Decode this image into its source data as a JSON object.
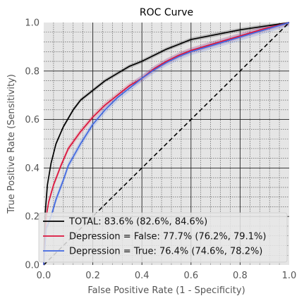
{
  "chart_data": {
    "type": "line",
    "title": "ROC Curve",
    "xlabel": "False Positive Rate (1 - Specificity)",
    "ylabel": "True Positive Rate (Sensitivity)",
    "xlim": [
      0,
      1
    ],
    "ylim": [
      0,
      1
    ],
    "xticks": [
      "0.0",
      "0.2",
      "0.4",
      "0.6",
      "0.8",
      "1.0"
    ],
    "yticks": [
      "0.0",
      "0.2",
      "0.4",
      "0.6",
      "0.8",
      "1.0"
    ],
    "grid": true,
    "legend_position": "lower-right",
    "colors": {
      "plot_background": "#e5e5e5",
      "reference_line": "#000000"
    },
    "series": [
      {
        "name": "TOTAL: 83.6% (82.6%, 84.6%)",
        "color": "#000000",
        "band": 0.008,
        "points": [
          [
            0,
            0
          ],
          [
            0.005,
            0.2
          ],
          [
            0.015,
            0.33
          ],
          [
            0.03,
            0.42
          ],
          [
            0.05,
            0.5
          ],
          [
            0.08,
            0.57
          ],
          [
            0.12,
            0.64
          ],
          [
            0.15,
            0.68
          ],
          [
            0.2,
            0.72
          ],
          [
            0.25,
            0.76
          ],
          [
            0.3,
            0.79
          ],
          [
            0.35,
            0.82
          ],
          [
            0.4,
            0.84
          ],
          [
            0.45,
            0.865
          ],
          [
            0.5,
            0.89
          ],
          [
            0.55,
            0.91
          ],
          [
            0.6,
            0.93
          ],
          [
            0.7,
            0.95
          ],
          [
            0.8,
            0.97
          ],
          [
            0.9,
            0.985
          ],
          [
            1.0,
            1.0
          ]
        ]
      },
      {
        "name": "Depression = False: 77.7% (76.2%, 79.1%)",
        "color": "#dc143c",
        "band": 0.012,
        "points": [
          [
            0,
            0
          ],
          [
            0.01,
            0.2
          ],
          [
            0.02,
            0.26
          ],
          [
            0.04,
            0.33
          ],
          [
            0.07,
            0.41
          ],
          [
            0.1,
            0.48
          ],
          [
            0.15,
            0.55
          ],
          [
            0.2,
            0.61
          ],
          [
            0.25,
            0.66
          ],
          [
            0.3,
            0.7
          ],
          [
            0.35,
            0.74
          ],
          [
            0.4,
            0.77
          ],
          [
            0.45,
            0.81
          ],
          [
            0.5,
            0.84
          ],
          [
            0.55,
            0.865
          ],
          [
            0.6,
            0.885
          ],
          [
            0.7,
            0.915
          ],
          [
            0.8,
            0.945
          ],
          [
            0.9,
            0.975
          ],
          [
            1.0,
            1.0
          ]
        ]
      },
      {
        "name": "Depression = True: 76.4% (74.6%, 78.2%)",
        "color": "#4169e1",
        "band": 0.015,
        "points": [
          [
            0,
            0
          ],
          [
            0.01,
            0.15
          ],
          [
            0.03,
            0.2
          ],
          [
            0.05,
            0.27
          ],
          [
            0.08,
            0.35
          ],
          [
            0.1,
            0.41
          ],
          [
            0.15,
            0.5
          ],
          [
            0.2,
            0.58
          ],
          [
            0.25,
            0.64
          ],
          [
            0.3,
            0.69
          ],
          [
            0.35,
            0.73
          ],
          [
            0.4,
            0.77
          ],
          [
            0.45,
            0.805
          ],
          [
            0.5,
            0.835
          ],
          [
            0.55,
            0.86
          ],
          [
            0.6,
            0.88
          ],
          [
            0.7,
            0.91
          ],
          [
            0.8,
            0.94
          ],
          [
            0.9,
            0.97
          ],
          [
            1.0,
            1.0
          ]
        ]
      }
    ]
  }
}
